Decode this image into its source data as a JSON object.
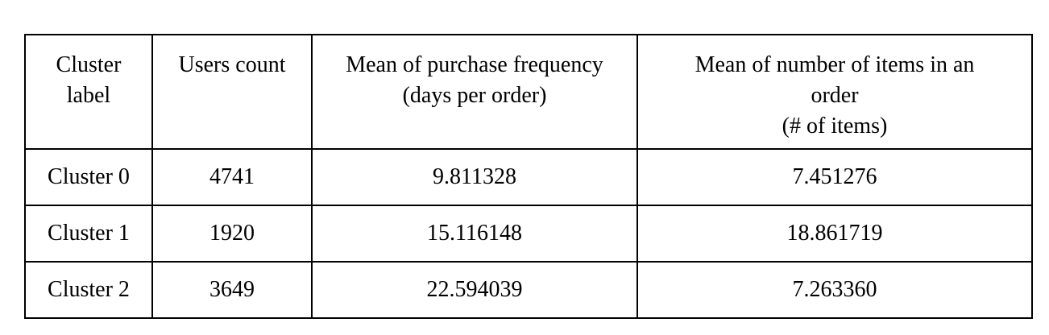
{
  "table": {
    "headers": [
      [
        "Cluster",
        "label"
      ],
      [
        "Users count"
      ],
      [
        "Mean of purchase frequency",
        "(days per order)"
      ],
      [
        "Mean of number of items in an",
        "order",
        "(# of items)"
      ]
    ],
    "rows": [
      [
        "Cluster 0",
        "4741",
        "9.811328",
        "7.451276"
      ],
      [
        "Cluster 1",
        "1920",
        "15.116148",
        "18.861719"
      ],
      [
        "Cluster 2",
        "3649",
        "22.594039",
        "7.263360"
      ]
    ]
  }
}
